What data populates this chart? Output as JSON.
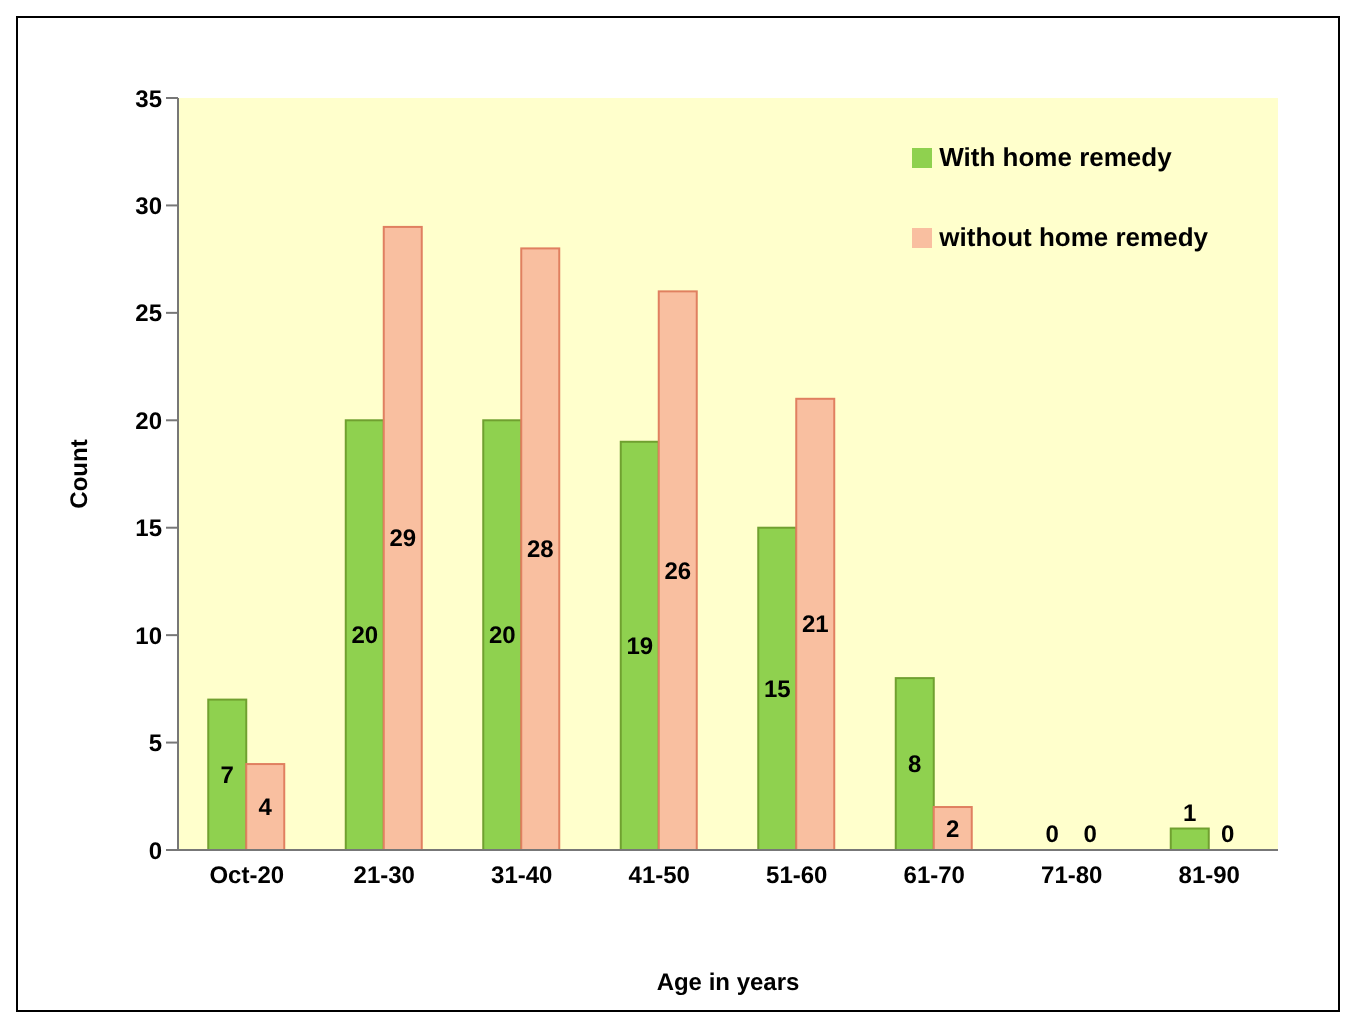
{
  "chart_data": {
    "type": "bar",
    "xlabel": "Age in years",
    "ylabel": "Count",
    "categories": [
      "Oct-20",
      "21-30",
      "31-40",
      "41-50",
      "51-60",
      "61-70",
      "71-80",
      "81-90"
    ],
    "series": [
      {
        "name": "With home remedy",
        "color": "#8fd14f",
        "values": [
          7,
          20,
          20,
          19,
          15,
          8,
          0,
          1
        ]
      },
      {
        "name": "without home remedy",
        "color": "#f9bfa0",
        "values": [
          4,
          29,
          28,
          26,
          21,
          2,
          0,
          0
        ]
      }
    ],
    "ylim": [
      0,
      35
    ],
    "yticks": [
      0,
      5,
      10,
      15,
      20,
      25,
      30,
      35
    ],
    "data_labels": true,
    "legend": "top right"
  }
}
